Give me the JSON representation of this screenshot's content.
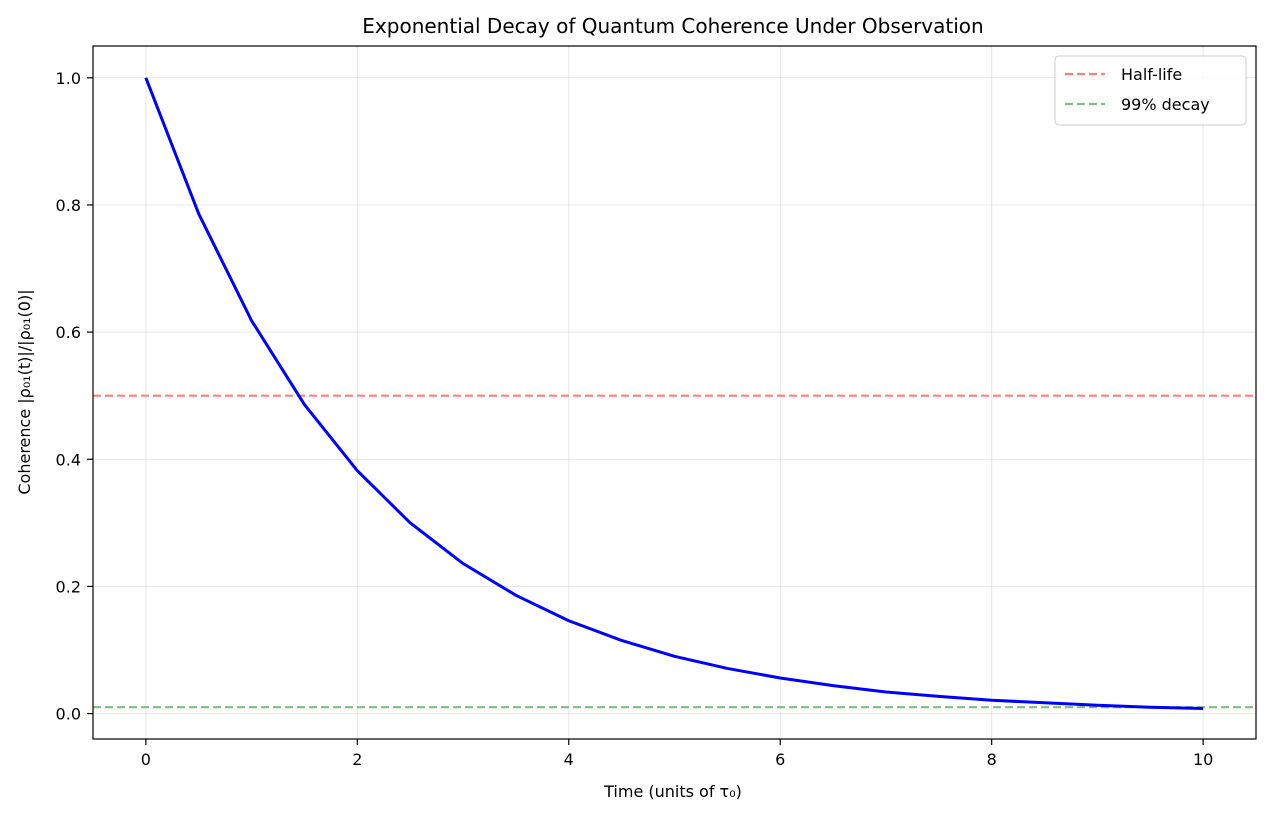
{
  "chart_data": {
    "type": "line",
    "title": "Exponential Decay of Quantum Coherence Under Observation",
    "xlabel": "Time (units of τ₀)",
    "ylabel": "Coherence |ρ₀₁(t)|/|ρ₀₁(0)|",
    "xlim": [
      -0.5,
      10.5
    ],
    "ylim": [
      -0.04,
      1.05
    ],
    "xticks": [
      0,
      2,
      4,
      6,
      8,
      10
    ],
    "xtick_labels": [
      "0",
      "2",
      "4",
      "6",
      "8",
      "10"
    ],
    "yticks": [
      0.0,
      0.2,
      0.4,
      0.6,
      0.8,
      1.0
    ],
    "ytick_labels": [
      "0.0",
      "0.2",
      "0.4",
      "0.6",
      "0.8",
      "1.0"
    ],
    "grid": true,
    "legend_position": "top-right",
    "series": [
      {
        "color": "#0000ff",
        "style": "solid",
        "x": [
          0,
          0.5,
          1,
          1.5,
          2,
          2.5,
          3,
          3.5,
          4,
          4.5,
          5,
          5.5,
          6,
          6.5,
          7,
          7.5,
          8,
          8.5,
          9,
          9.5,
          10
        ],
        "y": [
          1.0,
          0.786,
          0.618,
          0.486,
          0.382,
          0.3,
          0.236,
          0.186,
          0.146,
          0.115,
          0.09,
          0.071,
          0.056,
          0.044,
          0.034,
          0.027,
          0.021,
          0.017,
          0.013,
          0.01,
          0.008
        ]
      }
    ],
    "hlines": [
      {
        "name": "Half-life",
        "y": 0.5,
        "color": "#ff7f7f",
        "style": "dashed"
      },
      {
        "name": "99% decay",
        "y": 0.01,
        "color": "#7fbf7f",
        "style": "dashed"
      }
    ]
  }
}
